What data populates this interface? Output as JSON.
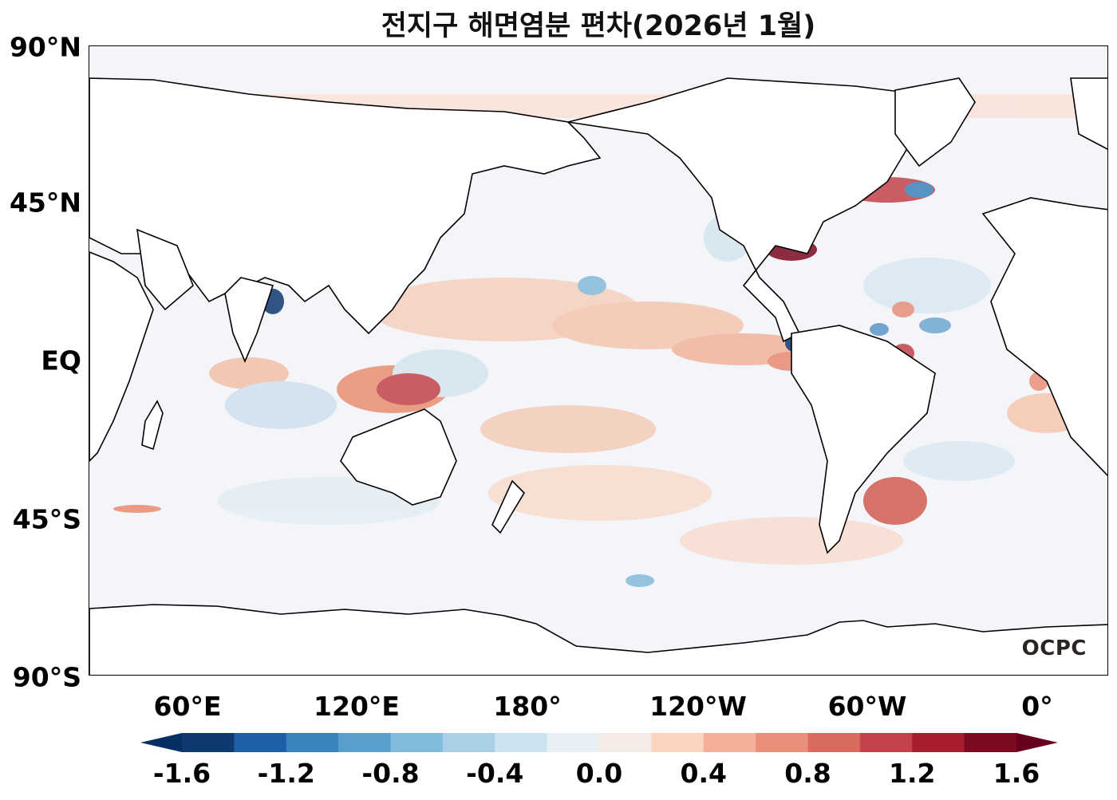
{
  "title": "전지구 해면염분 편차(2026년 1월)",
  "axes": {
    "lat_labels": [
      "90°N",
      "45°N",
      "EQ",
      "45°S",
      "90°S"
    ],
    "lon_labels": [
      "60°E",
      "120°E",
      "180°",
      "120°W",
      "60°W",
      "0°"
    ]
  },
  "logo": "OCPC",
  "colorbar": {
    "ticks": [
      "-1.6",
      "-1.2",
      "-0.8",
      "-0.4",
      "0.0",
      "0.4",
      "0.8",
      "1.2",
      "1.6"
    ],
    "colors": [
      "#053061",
      "#0f3a70",
      "#1f5fa8",
      "#3a84bd",
      "#5a9ecd",
      "#83bbdb",
      "#a9d0e6",
      "#cde3ef",
      "#e8f0f6",
      "#f6ebe4",
      "#fbd3bf",
      "#f6b09a",
      "#ea907a",
      "#d86b5e",
      "#c3434a",
      "#a91d30",
      "#7c0a21",
      "#67001f"
    ]
  },
  "legend_units": ""
}
